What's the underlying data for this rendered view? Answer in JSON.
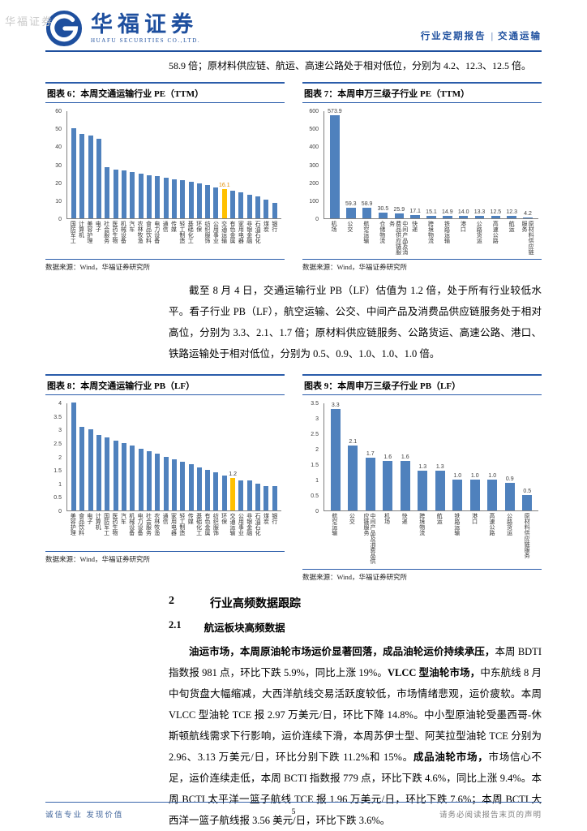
{
  "watermark": "华福证券",
  "header": {
    "brand": "华福证券",
    "brand_en": "HUAFU SECURITIES CO.,LTD.",
    "report_type": "行业定期报告",
    "separator": "|",
    "industry": "交通运输"
  },
  "intro_text": "58.9 倍；原材料供应链、航运、高速公路处于相对低位，分别为 4.2、12.3、12.5 倍。",
  "mid_paragraph": "截至 8 月 4 日，交通运输行业 PB（LF）估值为 1.2 倍，处于所有行业较低水平。看子行业 PB（LF），航空运输、公交、中间产品及消费品供应链服务处于相对高位，分别为 3.3、2.1、1.7 倍；原材料供应链服务、公路货运、高速公路、港口、铁路运输处于相对低位，分别为 0.5、0.9、1.0、1.0、1.0 倍。",
  "section": {
    "number": "2",
    "title": "行业高频数据跟踪"
  },
  "subsection": {
    "number": "2.1",
    "title": "航运板块高频数据"
  },
  "shipping_paragraph": [
    {
      "text": "油运市场，本周原油轮市场运价显著回落，成品油轮运价持续承压，",
      "bold": true
    },
    {
      "text": "本周 BDTI 指数报 981 点，环比下跌 5.9%，同比上涨 19%。",
      "bold": false
    },
    {
      "text": "VLCC 型油轮市场，",
      "bold": true
    },
    {
      "text": "中东航线 8 月中旬货盘大幅缩减，大西洋航线交易活跃度较低，市场情绪悲观，运价疲软。本周 VLCC 型油轮 TCE 报 2.97 万美元/日，环比下降 14.8%。中小型原油轮受墨西哥-休斯顿航线需求下行影响，运价连续下滑，本周苏伊士型、阿芙拉型油轮 TCE 分别为 2.96、3.13 万美元/日，环比分别下跌 11.2%和 15%。",
      "bold": false
    },
    {
      "text": "成品油轮市场，",
      "bold": true
    },
    {
      "text": "市场信心不足，运价连续走低，本周 BCTI 指数报 779 点，环比下跌 4.6%，同比上涨 9.4%。本周 BCTI 太平洋一篮子航线 TCE 报 1.96 万美元/日，环比下跌 7.6%；本周 BCTI 大西洋一篮子航线报 3.56 美元/日，环比下跌 3.6%。",
      "bold": false
    }
  ],
  "footer": {
    "left": "诚信专业  发现价值",
    "page": "5",
    "right": "请务必阅读报告末页的声明"
  },
  "colors": {
    "brand_blue": "#1e4f9e",
    "bar_blue": "#4f81bd",
    "highlight": "#ffc000"
  },
  "chart_data": [
    {
      "type": "bar",
      "title": "图表 6：本周交通运输行业 PE（TTM）",
      "source": "数据来源：Wind，华福证券研究所",
      "categories": [
        "国防军工",
        "计算机",
        "美容护理",
        "电子",
        "社会服务",
        "医药生物",
        "机械设备",
        "汽车",
        "农林牧渔",
        "食品饮料",
        "电力设备",
        "通信",
        "传媒",
        "轻工制造",
        "基础化工",
        "环保",
        "纺织服饰",
        "公用事业",
        "交通运输",
        "有色金属",
        "家用电器",
        "非银金融",
        "石油石化",
        "煤炭",
        "银行"
      ],
      "values": [
        50.2,
        47.0,
        46.1,
        44.3,
        28.4,
        27.2,
        26.5,
        25.8,
        24.9,
        24.1,
        23.3,
        22.6,
        21.8,
        21.0,
        20.3,
        19.6,
        18.5,
        17.3,
        16.1,
        15.2,
        14.4,
        13.1,
        12.0,
        10.3,
        8.4
      ],
      "ymax": 60,
      "yticks": [
        0,
        10,
        20,
        30,
        40,
        50,
        60
      ],
      "labels": "highlight",
      "highlight_index": 18,
      "bar_color": "#4f81bd",
      "highlight_color": "#ffc000",
      "highlight_label_color": "#e08c00",
      "grid": false,
      "legend": "none"
    },
    {
      "type": "bar",
      "title": "图表 7：本周申万三级子行业 PE（TTM）",
      "source": "数据来源：Wind，华福证券研究所",
      "categories": [
        "机场",
        "公交",
        "航空运输",
        "仓储物流",
        "中间产品及消费品供应链服务",
        "快递",
        "跨境物流",
        "铁路运输",
        "港口",
        "公路货运",
        "高速公路",
        "航运",
        "原材料供应链服务"
      ],
      "values": [
        573.9,
        59.3,
        58.9,
        30.5,
        25.9,
        17.1,
        15.1,
        14.9,
        14.0,
        13.3,
        12.5,
        12.3,
        4.2
      ],
      "ymax": 600,
      "yticks": [
        0,
        100,
        200,
        300,
        400,
        500,
        600
      ],
      "labels": "all",
      "highlight_index": -1,
      "bar_color": "#4f81bd",
      "highlight_color": "#ffc000",
      "highlight_label_color": "#404040",
      "grid": false,
      "legend": "none"
    },
    {
      "type": "bar",
      "title": "图表 8：本周交通运输行业 PB（LF）",
      "source": "数据来源：Wind，华福证券研究所",
      "categories": [
        "美容护理",
        "食品饮料",
        "电子",
        "计算机",
        "国防军工",
        "医药生物",
        "汽车",
        "机械设备",
        "电力设备",
        "社会服务",
        "农林牧渔",
        "通信",
        "家用电器",
        "轻工制造",
        "传媒",
        "基础化工",
        "有色金属",
        "纺织服饰",
        "环保",
        "交通运输",
        "公用事业",
        "非银金融",
        "石油石化",
        "煤炭",
        "银行"
      ],
      "values": [
        4.0,
        3.1,
        3.0,
        2.8,
        2.7,
        2.6,
        2.5,
        2.4,
        2.3,
        2.2,
        2.1,
        2.0,
        1.9,
        1.8,
        1.7,
        1.6,
        1.5,
        1.4,
        1.3,
        1.2,
        1.1,
        1.1,
        1.0,
        0.9,
        0.9
      ],
      "ymax": 4,
      "yticks": [
        0,
        0.5,
        1,
        1.5,
        2,
        2.5,
        3,
        3.5,
        4
      ],
      "labels": "highlight",
      "highlight_index": 19,
      "bar_color": "#4f81bd",
      "highlight_color": "#ffc000",
      "highlight_label_color": "#333333",
      "grid": false,
      "legend": "none"
    },
    {
      "type": "bar",
      "title": "图表 9：本周申万三级子行业 PB（LF）",
      "source": "数据来源：Wind，华福证券研究所",
      "categories": [
        "航空运输",
        "公交",
        "中间产品及消费品供应链服务",
        "机场",
        "快递",
        "跨境物流",
        "航运",
        "铁路运输",
        "港口",
        "高速公路",
        "公路货运",
        "原材料供应链服务"
      ],
      "values": [
        3.3,
        2.1,
        1.7,
        1.6,
        1.6,
        1.3,
        1.3,
        1.0,
        1.0,
        1.0,
        0.9,
        0.5
      ],
      "ymax": 3.5,
      "yticks": [
        0,
        0.5,
        1,
        1.5,
        2,
        2.5,
        3,
        3.5
      ],
      "labels": "all",
      "highlight_index": -1,
      "bar_color": "#4f81bd",
      "highlight_color": "#ffc000",
      "highlight_label_color": "#404040",
      "grid": false,
      "legend": "none"
    }
  ]
}
